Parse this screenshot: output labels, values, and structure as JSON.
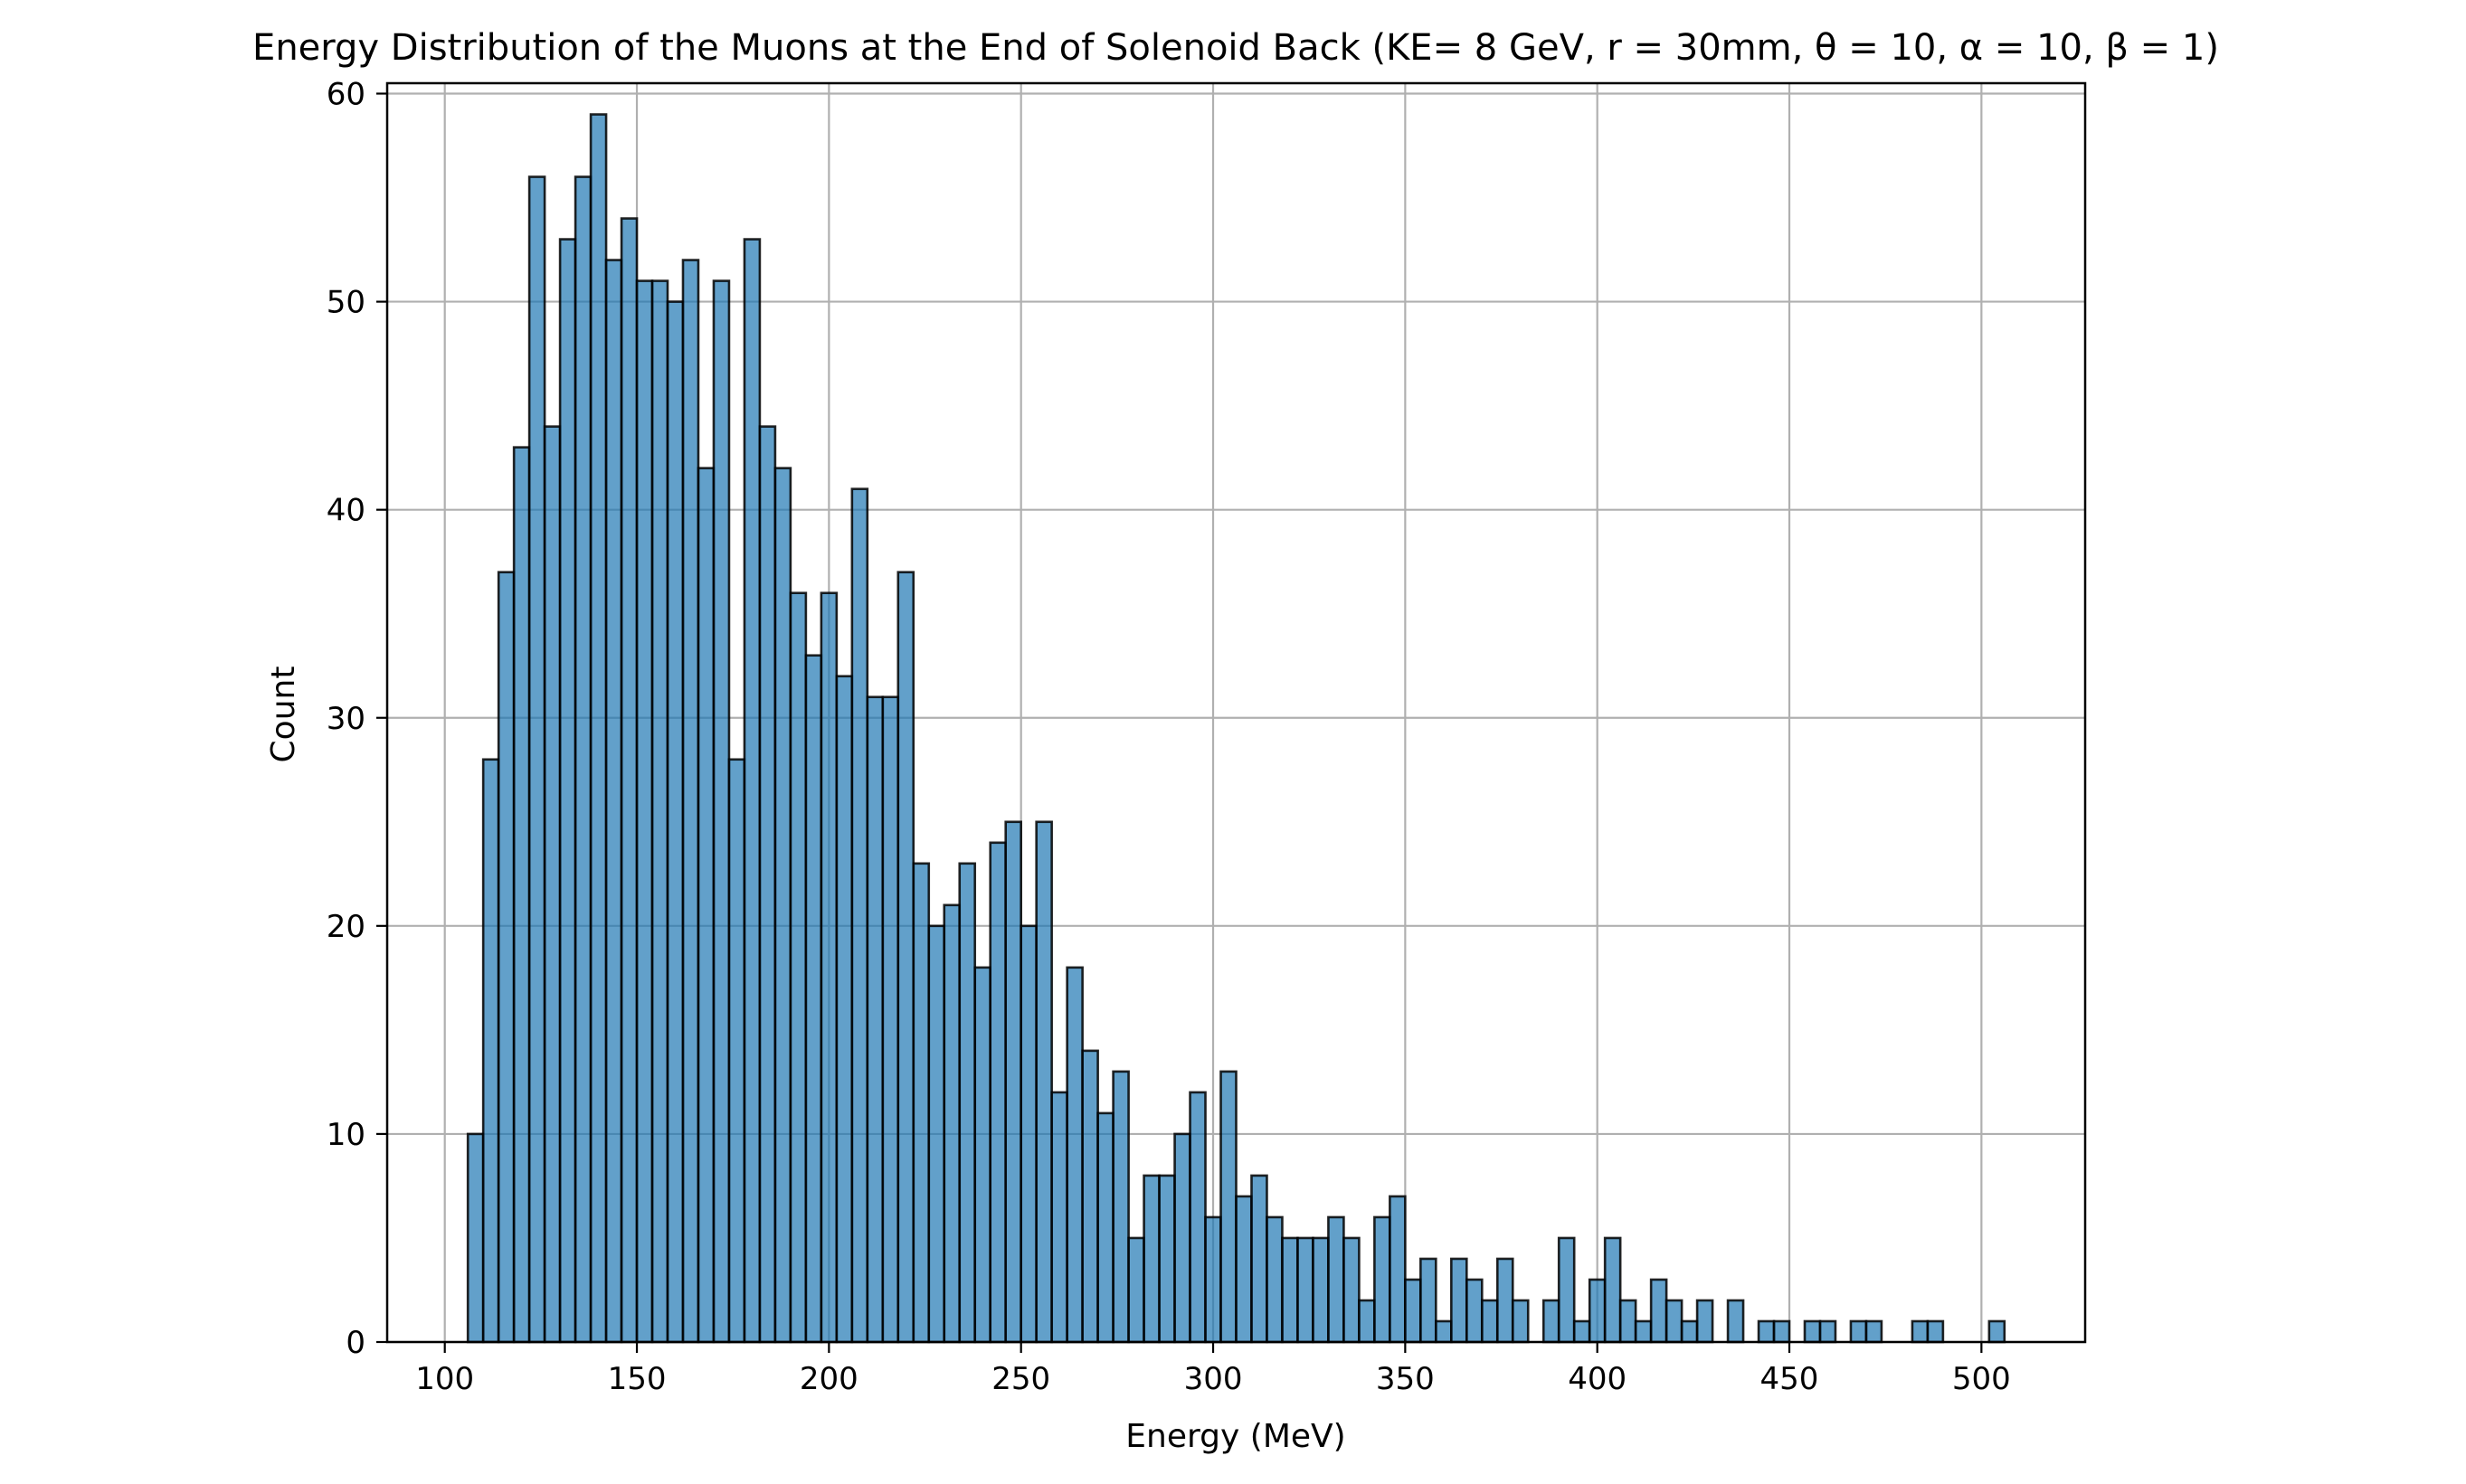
{
  "chart_data": {
    "type": "bar",
    "title": "Energy Distribution of the Muons at the End of Solenoid Back (KE= 8 GeV, r = 30mm, θ = 10, α = 10, β = 1)",
    "xlabel": "Energy (MeV)",
    "ylabel": "Count",
    "xlim": [
      85,
      527
    ],
    "ylim": [
      0,
      60.5
    ],
    "xticks": [
      100,
      150,
      200,
      250,
      300,
      350,
      400,
      450,
      500
    ],
    "yticks": [
      0,
      10,
      20,
      30,
      40,
      50,
      60
    ],
    "grid": true,
    "bin_start": 106.0,
    "bin_width": 4.0,
    "values": [
      10,
      28,
      37,
      43,
      56,
      44,
      53,
      56,
      59,
      52,
      54,
      51,
      51,
      50,
      52,
      42,
      51,
      28,
      53,
      44,
      42,
      36,
      33,
      36,
      32,
      41,
      31,
      31,
      37,
      23,
      20,
      21,
      23,
      18,
      24,
      25,
      20,
      25,
      12,
      18,
      14,
      11,
      13,
      5,
      8,
      8,
      10,
      12,
      6,
      13,
      7,
      8,
      6,
      5,
      5,
      5,
      6,
      5,
      2,
      6,
      7,
      3,
      4,
      1,
      4,
      3,
      2,
      4,
      2,
      0,
      2,
      5,
      1,
      3,
      5,
      2,
      1,
      3,
      2,
      1,
      2,
      0,
      2,
      0,
      1,
      1,
      0,
      1,
      1,
      0,
      1,
      1,
      0,
      0,
      1,
      1,
      0,
      0,
      0,
      1
    ],
    "colors": {
      "bar_fill": "#1f77b4",
      "bar_fill_opacity": "0.7",
      "bar_edge": "#000000",
      "grid": "#b0b0b0",
      "axis": "#000000"
    }
  }
}
